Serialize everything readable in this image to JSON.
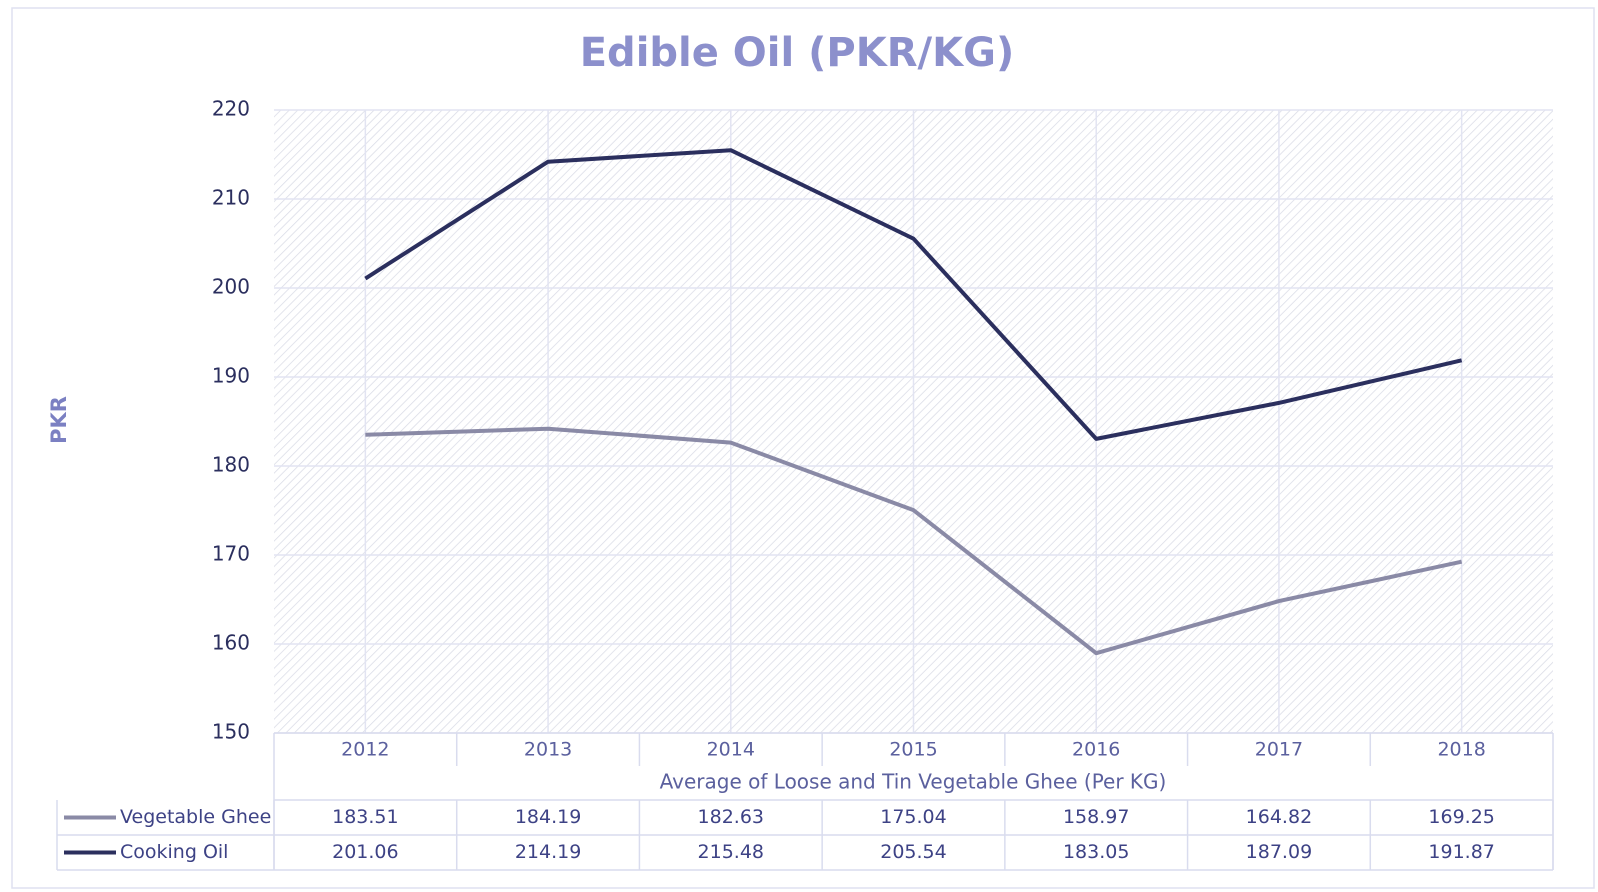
{
  "chart_data": {
    "type": "line",
    "title": "Edible Oil (PKR/KG)",
    "y_label": "PKR",
    "x_label": "Average of Loose and Tin Vegetable Ghee (Per KG)",
    "categories": [
      "2012",
      "2013",
      "2014",
      "2015",
      "2016",
      "2017",
      "2018"
    ],
    "series": [
      {
        "name": "Vegetable Ghee",
        "color": "#8a8aa6",
        "values": [
          183.51,
          184.19,
          182.63,
          175.04,
          158.97,
          164.82,
          169.25
        ]
      },
      {
        "name": "Cooking Oil",
        "color": "#2b2f5e",
        "values": [
          201.06,
          214.19,
          215.48,
          205.54,
          183.05,
          187.09,
          191.87
        ]
      }
    ],
    "ylim": [
      150,
      220
    ],
    "yticks": [
      150,
      160,
      170,
      180,
      190,
      200,
      210,
      220
    ],
    "grid": true,
    "data_table": true
  }
}
